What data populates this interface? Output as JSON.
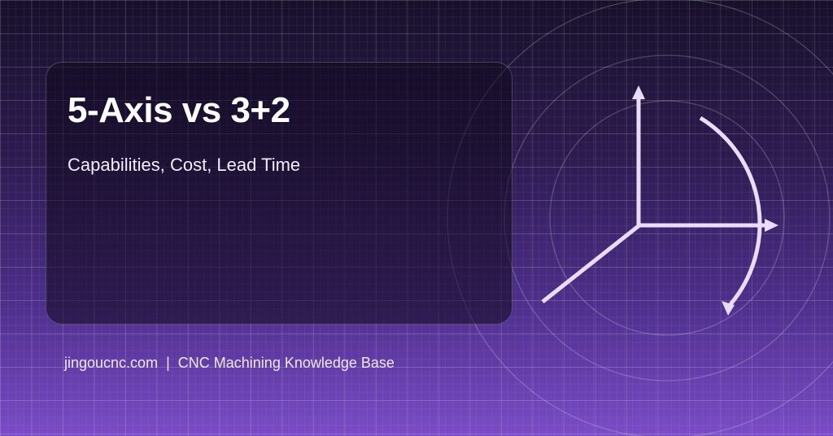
{
  "title": "5-Axis vs 3+2",
  "subtitle": "Capabilities, Cost, Lead Time",
  "footer": {
    "site": "jingoucnc.com",
    "separator": "|",
    "tagline": "CNC Machining Knowledge Base"
  },
  "graphic": {
    "icon": "axes-rotation-icon",
    "stroke_color": "#eadcff"
  },
  "colors": {
    "background_top": "#17102a",
    "background_bottom": "#7a4cc6"
  }
}
